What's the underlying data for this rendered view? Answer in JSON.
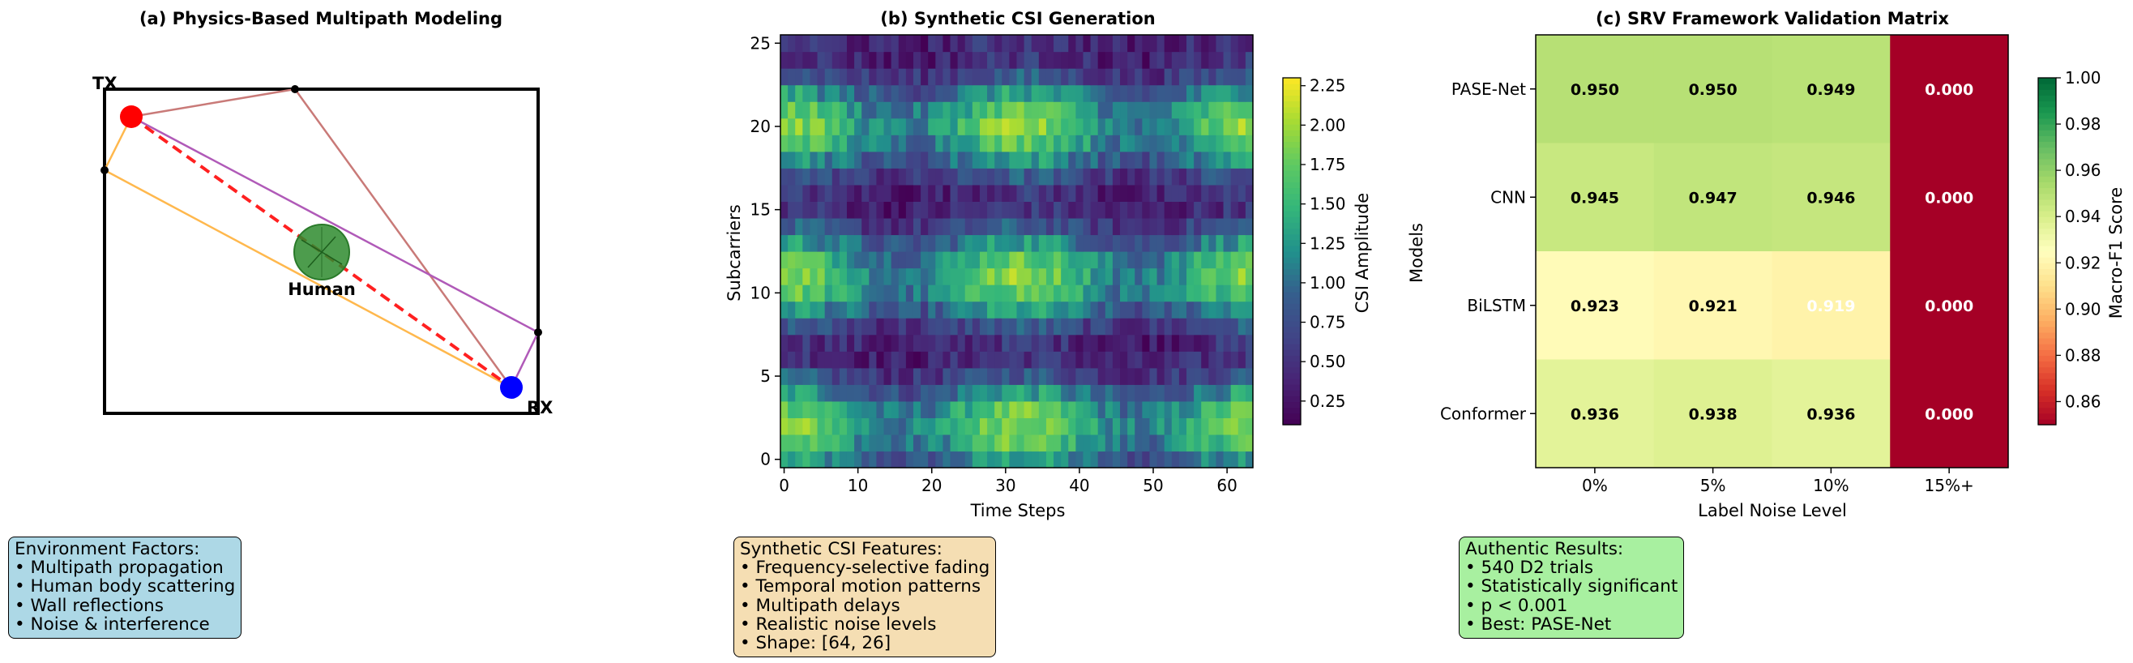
{
  "panels": {
    "a": {
      "title": "(a) Physics-Based Multipath Modeling",
      "tx_label": "TX",
      "rx_label": "RX",
      "human_label": "Human",
      "colors": {
        "tx": "#ff0000",
        "rx": "#0000ff",
        "human": "#2e8b2e",
        "los": "#ff2020",
        "path_orange": "#ffb84d",
        "path_brown": "#c97a78",
        "path_purple": "#b05ab8"
      }
    },
    "b": {
      "title": "(b) Synthetic CSI Generation",
      "xlabel": "Time Steps",
      "ylabel": "Subcarriers",
      "colorbar_label": "CSI Amplitude",
      "colormap": "viridis"
    },
    "c": {
      "title": "(c) SRV Framework Validation Matrix",
      "xlabel": "Label Noise Level",
      "ylabel": "Models",
      "colorbar_label": "Macro-F1 Score",
      "colormap": "RdYlGn"
    }
  },
  "notes": {
    "a": {
      "title": "Environment Factors:",
      "items": [
        "• Multipath propagation",
        "• Human body scattering",
        "• Wall reflections",
        "• Noise & interference"
      ],
      "bg": "#add8e6"
    },
    "b": {
      "title": "Synthetic CSI Features:",
      "items": [
        "• Frequency-selective fading",
        "• Temporal motion patterns",
        "• Multipath delays",
        "• Realistic noise levels",
        "• Shape: [64, 26]"
      ],
      "bg": "#f5deb3"
    },
    "c": {
      "title": "Authentic Results:",
      "items": [
        "• 540 D2 trials",
        "• Statistically significant",
        "• p < 0.001",
        "• Best: PASE-Net"
      ],
      "bg": "#90ee90"
    }
  },
  "chart_data": [
    {
      "type": "diagram",
      "title": "(a) Physics-Based Multipath Modeling",
      "nodes": [
        "TX",
        "RX",
        "Human"
      ],
      "paths": [
        "direct (dashed)",
        "wall reflection",
        "wall reflection",
        "human scattering"
      ]
    },
    {
      "type": "heatmap",
      "title": "(b) Synthetic CSI Generation",
      "xlabel": "Time Steps",
      "ylabel": "Subcarriers",
      "xlim": [
        0,
        63
      ],
      "ylim": [
        0,
        25
      ],
      "xticks": [
        "0",
        "10",
        "20",
        "30",
        "40",
        "50",
        "60"
      ],
      "yticks": [
        "0",
        "5",
        "10",
        "15",
        "20",
        "25"
      ],
      "shape": [
        64,
        26
      ],
      "colorbar": {
        "label": "CSI Amplitude",
        "min": 0.1,
        "max": 2.3,
        "ticks": [
          "0.25",
          "0.50",
          "0.75",
          "1.00",
          "1.25",
          "1.50",
          "1.75",
          "2.00",
          "2.25"
        ]
      }
    },
    {
      "type": "heatmap",
      "title": "(c) SRV Framework Validation Matrix",
      "xlabel": "Label Noise Level",
      "ylabel": "Models",
      "x": [
        "0%",
        "5%",
        "10%",
        "15%+"
      ],
      "y": [
        "PASE-Net",
        "CNN",
        "BiLSTM",
        "Conformer"
      ],
      "values": [
        [
          0.95,
          0.95,
          0.949,
          0.0
        ],
        [
          0.945,
          0.947,
          0.946,
          0.0
        ],
        [
          0.923,
          0.921,
          0.919,
          0.0
        ],
        [
          0.936,
          0.938,
          0.936,
          0.0
        ]
      ],
      "labels": [
        [
          "0.950",
          "0.950",
          "0.949",
          "0.000"
        ],
        [
          "0.945",
          "0.947",
          "0.946",
          "0.000"
        ],
        [
          "0.923",
          "0.921",
          "0.919",
          "0.000"
        ],
        [
          "0.936",
          "0.938",
          "0.936",
          "0.000"
        ]
      ],
      "colorbar": {
        "label": "Macro-F1 Score",
        "min": 0.85,
        "max": 1.0,
        "ticks": [
          "0.86",
          "0.88",
          "0.90",
          "0.92",
          "0.94",
          "0.96",
          "0.98",
          "1.00"
        ]
      }
    }
  ]
}
